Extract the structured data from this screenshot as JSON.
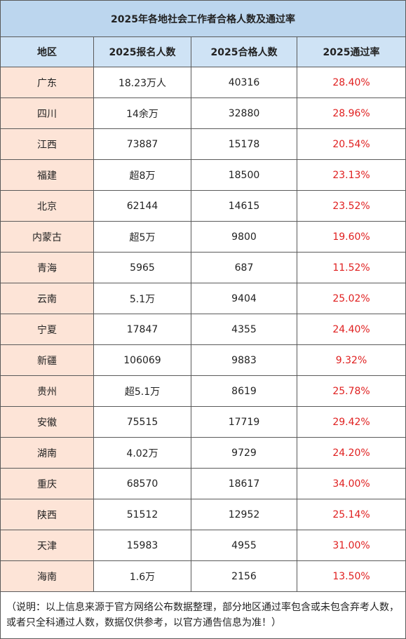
{
  "title": "2025年各地社会工作者合格人数及通过率",
  "headers": [
    "地区",
    "2025报名人数",
    "2025合格人数",
    "2025通过率"
  ],
  "rows": [
    [
      "广东",
      "18.23万人",
      "40316",
      "28.40%"
    ],
    [
      "四川",
      "14余万",
      "32880",
      "28.96%"
    ],
    [
      "江西",
      "73887",
      "15178",
      "20.54%"
    ],
    [
      "福建",
      "超8万",
      "18500",
      "23.13%"
    ],
    [
      "北京",
      "62144",
      "14615",
      "23.52%"
    ],
    [
      "内蒙古",
      "超5万",
      "9800",
      "19.60%"
    ],
    [
      "青海",
      "5965",
      "687",
      "11.52%"
    ],
    [
      "云南",
      "5.1万",
      "9404",
      "25.02%"
    ],
    [
      "宁夏",
      "17847",
      "4355",
      "24.40%"
    ],
    [
      "新疆",
      "106069",
      "9883",
      "9.32%"
    ],
    [
      "贵州",
      "超5.1万",
      "8619",
      "25.78%"
    ],
    [
      "安徽",
      "75515",
      "17719",
      "29.42%"
    ],
    [
      "湖南",
      "4.02万",
      "9729",
      "24.20%"
    ],
    [
      "重庆",
      "68570",
      "18617",
      "34.00%"
    ],
    [
      "陕西",
      "51512",
      "12952",
      "25.14%"
    ],
    [
      "天津",
      "15983",
      "4955",
      "31.00%"
    ],
    [
      "海南",
      "1.6万",
      "2156",
      "13.50%"
    ]
  ],
  "note": "（说明：以上信息来源于官方网络公布数据整理，部分地区通过率包含或未包含弃考人数，或者只全科通过人数，数据仅供参考，以官方通告信息为准！）",
  "colors": {
    "title_bg": "#bcd6ee",
    "header_bg": "#cfe3f5",
    "region_bg": "#fde4d7",
    "rate_text": "#e02020",
    "border": "#5a5a5a"
  }
}
